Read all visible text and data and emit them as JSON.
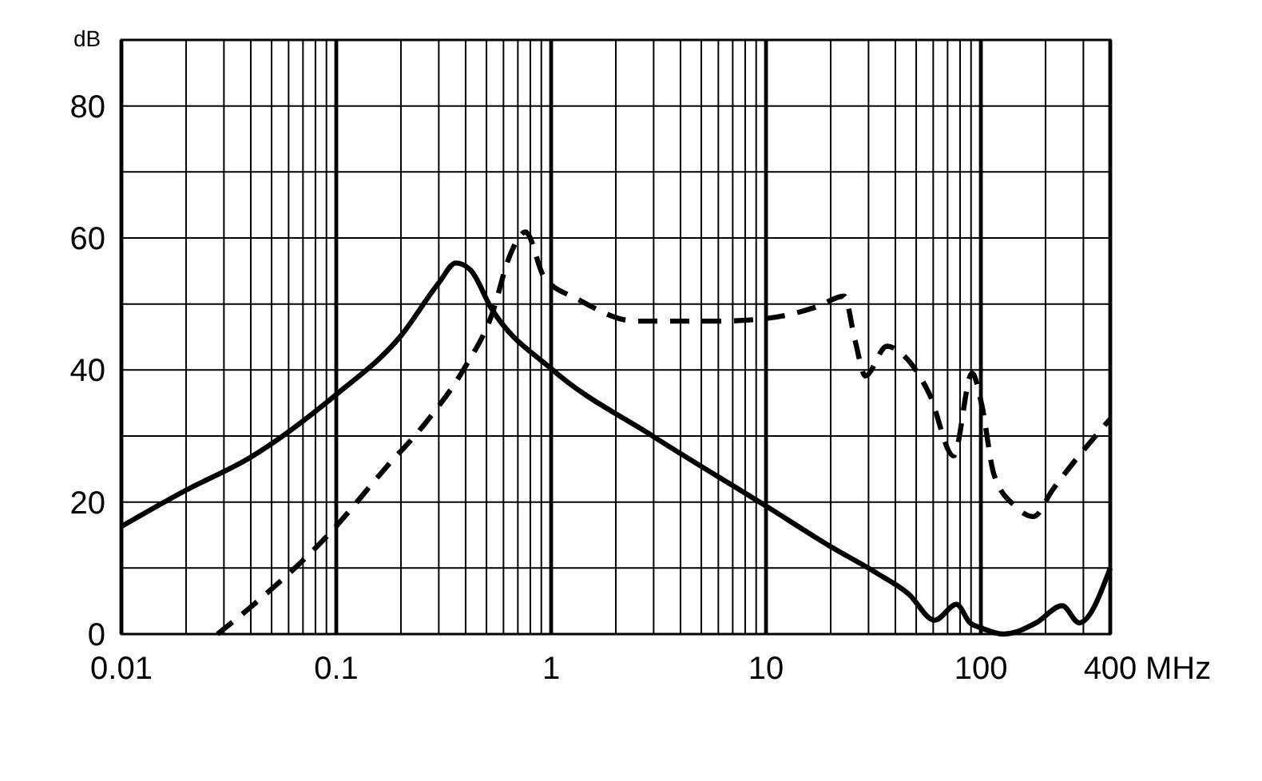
{
  "chart_data": {
    "type": "line",
    "xlabel": "MHz",
    "ylabel": "dB",
    "log": "x",
    "grid": true,
    "xlim": [
      0.01,
      400
    ],
    "ylim": [
      0,
      90
    ],
    "xticks": [
      {
        "value": 0.01,
        "label": "0.01"
      },
      {
        "value": 0.02,
        "label": null
      },
      {
        "value": 0.03,
        "label": null
      },
      {
        "value": 0.04,
        "label": null
      },
      {
        "value": 0.05,
        "label": null
      },
      {
        "value": 0.06,
        "label": null
      },
      {
        "value": 0.07,
        "label": null
      },
      {
        "value": 0.08,
        "label": null
      },
      {
        "value": 0.09,
        "label": null
      },
      {
        "value": 0.1,
        "label": "0.1"
      },
      {
        "value": 0.2,
        "label": null
      },
      {
        "value": 0.3,
        "label": null
      },
      {
        "value": 0.4,
        "label": null
      },
      {
        "value": 0.5,
        "label": null
      },
      {
        "value": 0.6,
        "label": null
      },
      {
        "value": 0.7,
        "label": null
      },
      {
        "value": 0.8,
        "label": null
      },
      {
        "value": 0.9,
        "label": null
      },
      {
        "value": 1,
        "label": "1"
      },
      {
        "value": 2,
        "label": null
      },
      {
        "value": 3,
        "label": null
      },
      {
        "value": 4,
        "label": null
      },
      {
        "value": 5,
        "label": null
      },
      {
        "value": 6,
        "label": null
      },
      {
        "value": 7,
        "label": null
      },
      {
        "value": 8,
        "label": null
      },
      {
        "value": 9,
        "label": null
      },
      {
        "value": 10,
        "label": "10"
      },
      {
        "value": 20,
        "label": null
      },
      {
        "value": 30,
        "label": null
      },
      {
        "value": 40,
        "label": null
      },
      {
        "value": 50,
        "label": null
      },
      {
        "value": 60,
        "label": null
      },
      {
        "value": 70,
        "label": null
      },
      {
        "value": 80,
        "label": null
      },
      {
        "value": 90,
        "label": null
      },
      {
        "value": 100,
        "label": "100"
      },
      {
        "value": 200,
        "label": null
      },
      {
        "value": 300,
        "label": null
      },
      {
        "value": 400,
        "label": "400"
      }
    ],
    "yticks": [
      0,
      {
        "value": 10,
        "label": null
      },
      20,
      {
        "value": 30,
        "label": null
      },
      40,
      {
        "value": 50,
        "label": null
      },
      60,
      {
        "value": 70,
        "label": null
      },
      80,
      {
        "value": 90,
        "label": null
      }
    ],
    "series": [
      {
        "color": "#000000",
        "line_style": "solid",
        "x": [
          0.01,
          0.02,
          0.04,
          0.1,
          0.2,
          0.3,
          0.36,
          0.42,
          0.53,
          1,
          3,
          10,
          20.6,
          32.5,
          46,
          61,
          77,
          89,
          101,
          128,
          181,
          239,
          287,
          400
        ],
        "values": [
          16.3,
          21.8,
          26.8,
          36.3,
          45.2,
          53.2,
          56.2,
          55.2,
          49.2,
          40.2,
          29.9,
          19.4,
          13,
          9.3,
          6.1,
          2.1,
          4.5,
          1.7,
          0.9,
          0,
          1.7,
          4.3,
          1.7,
          10
        ]
      },
      {
        "color": "#000000",
        "line_style": "dashed",
        "x": [
          0.028,
          0.04,
          0.094,
          0.168,
          0.265,
          0.395,
          0.53,
          0.64,
          0.76,
          0.93,
          1.32,
          2.5,
          5.8,
          10,
          17.3,
          23.1,
          26,
          29,
          36.5,
          43.4,
          57.7,
          74.6,
          91,
          101,
          115,
          144,
          176,
          215,
          400
        ],
        "values": [
          0,
          4.1,
          15.4,
          25,
          32.3,
          40.3,
          48.4,
          57.2,
          60.9,
          54,
          50.8,
          47.4,
          47.4,
          47.8,
          49.6,
          51.2,
          44.4,
          39.1,
          43.6,
          42.3,
          36.3,
          27,
          39.5,
          34.7,
          24.2,
          19.4,
          17.8,
          21.8,
          32.6
        ]
      }
    ]
  }
}
